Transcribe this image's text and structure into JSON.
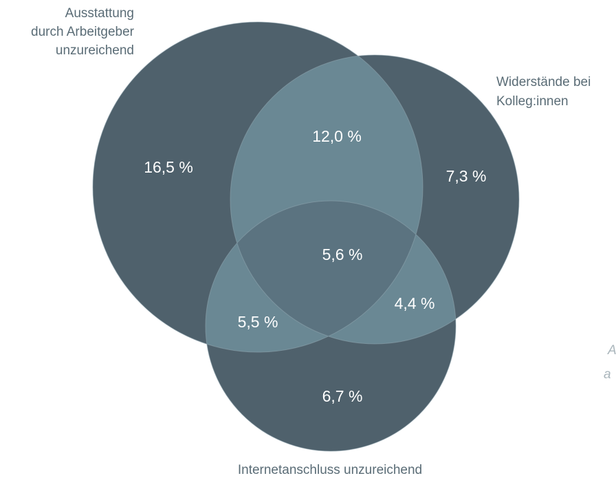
{
  "sets": [
    {
      "label": [
        "Ausstattung",
        "durch Arbeitgeber",
        "unzureichend"
      ]
    },
    {
      "label": [
        "Widerstände bei",
        "Kolleg:innen"
      ]
    },
    {
      "label": [
        "Internetanschluss unzureichend"
      ]
    }
  ],
  "regions": {
    "a_only": "16,5 %",
    "b_only": "7,3 %",
    "c_only": "6,7 %",
    "ab": "12,0 %",
    "bc": "4,4 %",
    "ac": "5,5 %",
    "abc": "5,6 %"
  },
  "fragments": [
    "A",
    "a"
  ]
}
